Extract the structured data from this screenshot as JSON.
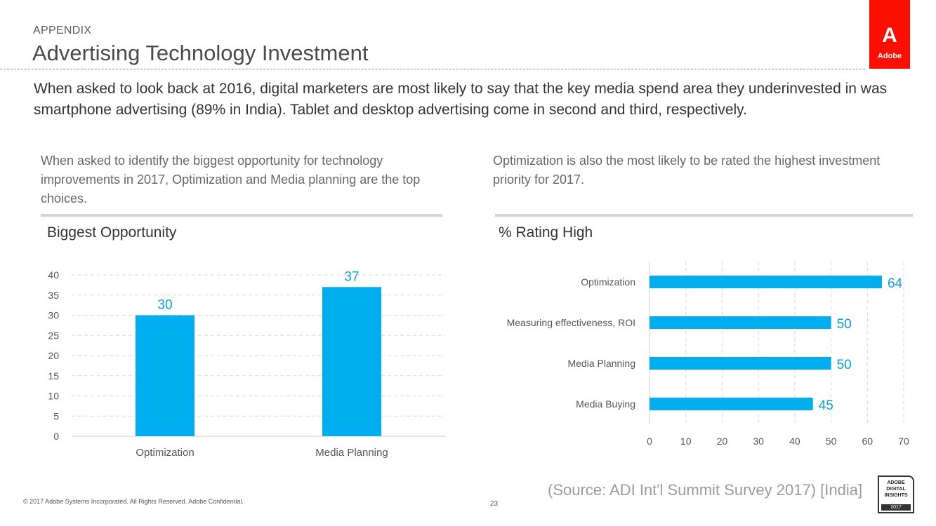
{
  "header": {
    "section": "APPENDIX",
    "title": "Advertising Technology Investment",
    "logo_word": "Adobe"
  },
  "summary": "When asked to look back at 2016, digital marketers are most likely to say that the key media spend area they underinvested in was smartphone advertising (89% in India). Tablet and desktop advertising come in second and third, respectively.",
  "left": {
    "description": "When asked to identify the biggest opportunity for technology improvements in 2017, Optimization and Media planning are the top choices.",
    "chart_title": "Biggest Opportunity"
  },
  "right": {
    "description": "Optimization is also the most likely to be rated the highest investment priority for 2017.",
    "chart_title": "% Rating High"
  },
  "chart_data": [
    {
      "type": "bar",
      "title": "Biggest Opportunity",
      "categories": [
        "Optimization",
        "Media Planning"
      ],
      "values": [
        30,
        37
      ],
      "ylim": [
        0,
        40
      ],
      "yticks": [
        0,
        5,
        10,
        15,
        20,
        25,
        30,
        35,
        40
      ],
      "grid": true,
      "color": "#00aeef",
      "label_color": "#0aa3d8"
    },
    {
      "type": "bar",
      "orientation": "horizontal",
      "title": "% Rating High",
      "categories": [
        "Optimization",
        "Measuring effectiveness, ROI",
        "Media Planning",
        "Media Buying"
      ],
      "values": [
        64,
        50,
        50,
        45
      ],
      "xlim": [
        0,
        70
      ],
      "xticks": [
        0,
        10,
        20,
        30,
        40,
        50,
        60,
        70
      ],
      "grid": true,
      "color": "#00aeef",
      "label_color": "#0aa3d8"
    }
  ],
  "footer": {
    "copyright": "© 2017 Adobe Systems Incorporated.  All Rights Reserved.  Adobe Confidential.",
    "page_number": "23",
    "source": "(Source: ADI Int'l Summit Survey 2017) [India]",
    "badge_lines": [
      "ADOBE",
      "DIGITAL",
      "INSIGHTS"
    ],
    "badge_year": "2017"
  }
}
